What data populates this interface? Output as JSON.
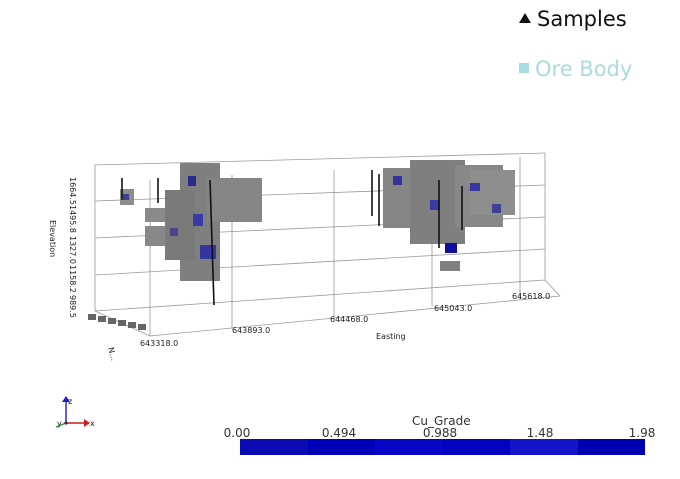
{
  "legend": {
    "samples_label": "Samples",
    "ore_label": "Ore Body",
    "samples_icon": "triangle-icon",
    "ore_icon": "square-icon",
    "ore_color": "#a9dbe3"
  },
  "axes": {
    "elevation_label": "Elevation",
    "easting_label": "Easting",
    "northing_label": "N...",
    "elevation_ticks": [
      "1664.5",
      "1495.8",
      "1327.0",
      "1158.2",
      "989.5"
    ],
    "easting_ticks": [
      "643318.0",
      "643893.0",
      "644468.0",
      "645043.0",
      "645618.0"
    ]
  },
  "colorbar": {
    "title": "Cu_Grade",
    "ticks": [
      "0.00",
      "0.494",
      "0.988",
      "1.48",
      "1.98"
    ],
    "colors": [
      "#0b0bb4",
      "#0000b8",
      "#0606c4",
      "#0303bf",
      "#1414c8",
      "#0000b0"
    ]
  },
  "orientation": {
    "x_label": "x",
    "y_label": "y",
    "z_label": "z"
  }
}
